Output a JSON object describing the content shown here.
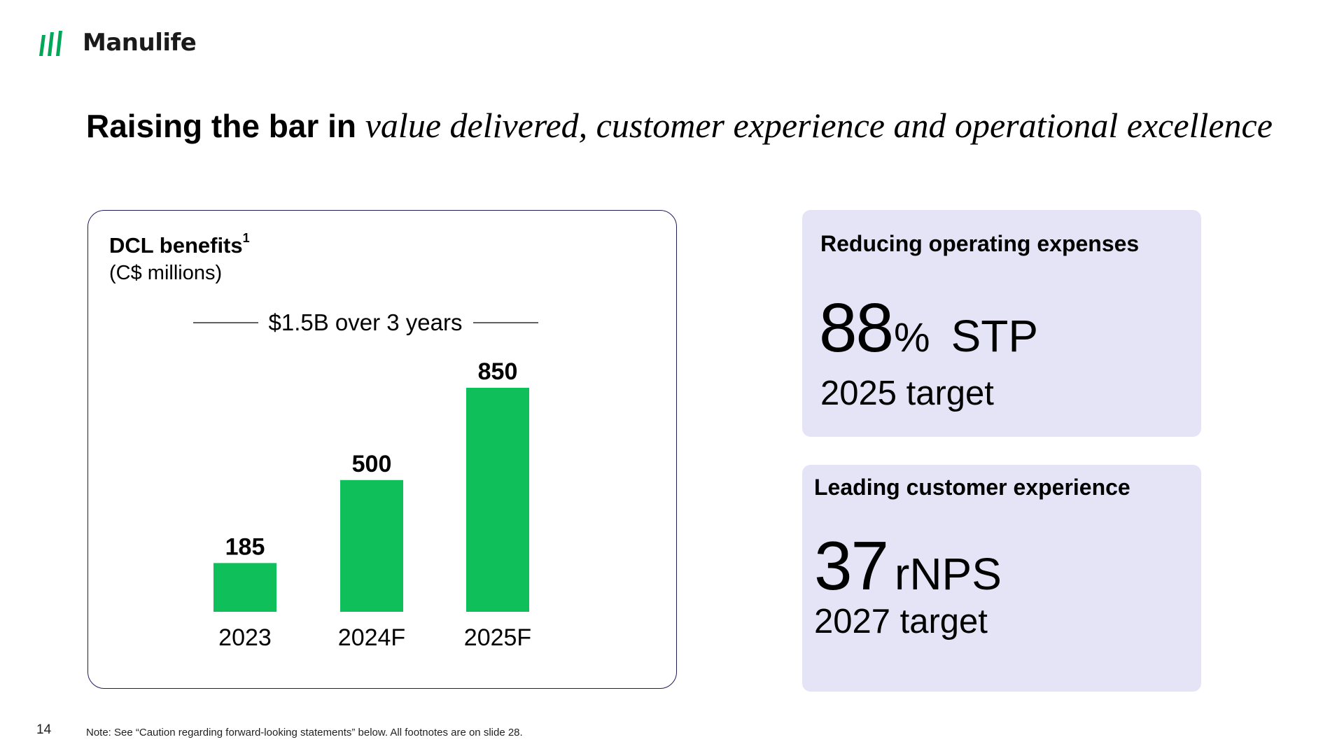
{
  "header": {
    "logo_text": "Manulife",
    "brand_color": "#00a758"
  },
  "title": {
    "strong": "Raising the bar in ",
    "italic": "value delivered, customer experience and operational excellence"
  },
  "chart_card": {
    "title": "DCL benefits",
    "footnote_marker": "1",
    "subtitle": "(C$ millions)",
    "annotation": "$1.5B over 3 years"
  },
  "chart_data": {
    "type": "bar",
    "categories": [
      "2023",
      "2024F",
      "2025F"
    ],
    "values": [
      185,
      500,
      850
    ],
    "data_labels": [
      "185",
      "500",
      "850"
    ],
    "title": "DCL benefits",
    "ylabel": "",
    "xlabel": "",
    "grid": false,
    "bar_color": "#0fbf5a"
  },
  "cards": [
    {
      "heading": "Reducing operating expenses",
      "metric_value": "88",
      "metric_suffix": "%",
      "metric_unit": "STP",
      "subtext": "2025 target",
      "background": "#e5e4f7"
    },
    {
      "heading": "Leading customer experience",
      "metric_value": "37",
      "metric_unit": "rNPS",
      "subtext": "2027 target",
      "background": "#e5e4f7"
    }
  ],
  "footer": {
    "page_number": "14",
    "note": "Note: See “Caution regarding forward-looking statements” below. All footnotes are on slide 28."
  }
}
